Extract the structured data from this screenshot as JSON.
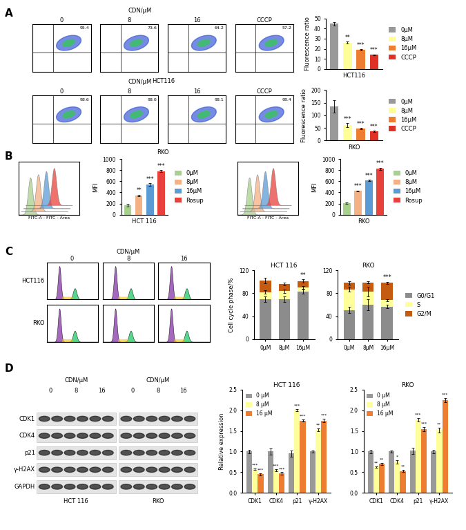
{
  "panel_labels": [
    "A",
    "B",
    "C",
    "D"
  ],
  "flow_cytometry": {
    "header": "CDN/μM",
    "conditions": [
      "0",
      "8",
      "16",
      "CCCP"
    ],
    "rows": [
      {
        "cell_line": "HCT116",
        "q2": [
          "95.4",
          "73.6",
          "64.2",
          "57.2"
        ]
      },
      {
        "cell_line": "RKO",
        "q2": [
          "98.6",
          "98.0",
          "98.1",
          "98.4"
        ]
      }
    ]
  },
  "ros_histograms": {
    "xlabel": "FITC-A - FITC - Area"
  },
  "cell_cycle_histograms": {
    "header": "CDN/μM",
    "conditions": [
      "0",
      "8",
      "16"
    ],
    "rows": [
      "HCT116",
      "RKO"
    ]
  },
  "western_blot": {
    "header": "CDN/μM",
    "doses": [
      "0",
      "8",
      "16"
    ],
    "cell_lines": [
      "HCT 116",
      "RKO"
    ],
    "rows": [
      "CDK1",
      "CDK4",
      "p21",
      "γ-H2AX",
      "GAPDH"
    ]
  },
  "chart_data": [
    {
      "type": "bar",
      "ylabel": "Fluorescence ratio",
      "xlabel": "HCT116",
      "categories": [
        "0μM",
        "8μM",
        "16μM",
        "CCCP"
      ],
      "values": [
        45,
        26,
        19,
        14
      ],
      "errors": [
        1.8,
        1.0,
        0.6,
        0.5
      ],
      "significance": [
        null,
        "**",
        "***",
        "***"
      ],
      "colors": [
        "#999999",
        "#ffff99",
        "#ed7d31",
        "#e03127"
      ],
      "ylim": [
        0,
        50
      ],
      "yticks": [
        0,
        10,
        20,
        30,
        40,
        50
      ],
      "legend": "right",
      "tick_labels": "y"
    },
    {
      "type": "bar",
      "ylabel": "Fluorescence ratio",
      "xlabel": "RKO",
      "categories": [
        "0μM",
        "8μM",
        "16μM",
        "CCCP"
      ],
      "values": [
        135,
        62,
        48,
        36
      ],
      "errors": [
        25,
        8,
        3,
        3
      ],
      "significance": [
        null,
        "***",
        "***",
        "***"
      ],
      "colors": [
        "#999999",
        "#ffff99",
        "#ed7d31",
        "#e03127"
      ],
      "ylim": [
        0,
        200
      ],
      "yticks": [
        0,
        50,
        100,
        150,
        200
      ],
      "legend": "right",
      "tick_labels": "y"
    },
    {
      "type": "bar",
      "ylabel": "MFI",
      "xlabel": "HCT 116",
      "categories": [
        "0μM",
        "8μM",
        "16μM",
        "Rosup"
      ],
      "values": [
        170,
        345,
        545,
        780
      ],
      "errors": [
        25,
        15,
        25,
        20
      ],
      "significance": [
        null,
        "**",
        "***",
        "***"
      ],
      "colors": [
        "#a9d18e",
        "#f4b183",
        "#5b9bd5",
        "#e8413c"
      ],
      "ylim": [
        0,
        1000
      ],
      "yticks": [
        0,
        200,
        400,
        600,
        800,
        1000
      ],
      "legend": "right",
      "tick_labels": "y"
    },
    {
      "type": "bar",
      "ylabel": "MFI",
      "xlabel": "RKO",
      "categories": [
        "0μM",
        "8μM",
        "16μM",
        "Rosup"
      ],
      "values": [
        210,
        425,
        620,
        825
      ],
      "errors": [
        15,
        10,
        12,
        20
      ],
      "significance": [
        null,
        "***",
        "***",
        "***"
      ],
      "colors": [
        "#a9d18e",
        "#f4b183",
        "#5b9bd5",
        "#e8413c"
      ],
      "ylim": [
        0,
        1000
      ],
      "yticks": [
        0,
        200,
        400,
        600,
        800,
        1000
      ],
      "legend": "right",
      "tick_labels": "y"
    },
    {
      "type": "bar",
      "stacked": true,
      "title": "HCT 116",
      "ylabel": "Cell cycle phase/%",
      "categories": [
        "0μM",
        "8μM",
        "16μM"
      ],
      "series": [
        {
          "name": "G0/G1",
          "color": "#8c8c8c",
          "values": [
            70,
            70,
            83
          ],
          "errors": [
            5,
            5,
            4
          ]
        },
        {
          "name": "S",
          "color": "#ffff99",
          "values": [
            12,
            14,
            7
          ],
          "errors": [
            3,
            3,
            2
          ]
        },
        {
          "name": "G2/M",
          "color": "#c55a11",
          "values": [
            20,
            12,
            11
          ],
          "errors": [
            5,
            2,
            3
          ]
        }
      ],
      "significance": [
        null,
        null,
        "**"
      ],
      "ylim": [
        0,
        120
      ],
      "yticks": [
        0,
        40,
        80,
        120
      ]
    },
    {
      "type": "bar",
      "stacked": true,
      "title": "RKO",
      "categories": [
        "0μM",
        "8μM",
        "16μM"
      ],
      "series": [
        {
          "name": "G0/G1",
          "color": "#8c8c8c",
          "values": [
            51,
            60,
            57
          ],
          "errors": [
            6,
            10,
            3
          ]
        },
        {
          "name": "S",
          "color": "#ffff99",
          "values": [
            36,
            23,
            11
          ],
          "errors": [
            4,
            8,
            2
          ]
        },
        {
          "name": "G2/M",
          "color": "#c55a11",
          "values": [
            11,
            16,
            30
          ],
          "errors": [
            3,
            2,
            2
          ]
        }
      ],
      "significance": [
        null,
        null,
        "***"
      ],
      "ylim": [
        0,
        120
      ],
      "yticks": [
        0,
        40,
        80,
        120
      ],
      "legend": "right"
    },
    {
      "type": "bar",
      "title": "HCT 116",
      "ylabel": "Relative expression",
      "categories": [
        "CDK1",
        "CDK4",
        "p21",
        "γ-H2AX"
      ],
      "series": [
        {
          "name": "0 μM",
          "color": "#999999",
          "values": [
            1.0,
            1.0,
            0.95,
            1.0
          ],
          "errors": [
            0.04,
            0.08,
            0.07,
            0.02
          ],
          "significance": [
            null,
            null,
            null,
            null
          ]
        },
        {
          "name": "8 μM",
          "color": "#ffff99",
          "values": [
            0.57,
            0.55,
            2.0,
            1.53
          ],
          "errors": [
            0.02,
            0.03,
            0.03,
            0.03
          ],
          "significance": [
            "***",
            "***",
            "***",
            "**"
          ]
        },
        {
          "name": "16 μM",
          "color": "#ed7d31",
          "values": [
            0.45,
            0.47,
            1.75,
            1.75
          ],
          "errors": [
            0.02,
            0.03,
            0.03,
            0.04
          ],
          "significance": [
            "***",
            "***",
            "***",
            "***"
          ]
        }
      ],
      "ylim": [
        0,
        2.5
      ],
      "yticks": [
        {
          "value": 0,
          "label": "0.0"
        },
        {
          "value": 0.5,
          "label": "0.5"
        },
        {
          "value": 1.0,
          "label": "1.0"
        },
        {
          "value": 1.5,
          "label": "1.5"
        },
        {
          "value": 2.0,
          "label": "2.0"
        },
        {
          "value": 2.5,
          "label": "2.5"
        }
      ],
      "legend": "upper left"
    },
    {
      "type": "bar",
      "title": "RKO",
      "categories": [
        "CDK1",
        "CDK4",
        "p21",
        "γ-H2AX"
      ],
      "series": [
        {
          "name": "0 μM",
          "color": "#999999",
          "values": [
            1.0,
            1.0,
            1.02,
            1.0
          ],
          "errors": [
            0.04,
            0.03,
            0.08,
            0.04
          ],
          "significance": [
            null,
            null,
            null,
            null
          ]
        },
        {
          "name": "8 μM",
          "color": "#ffff99",
          "values": [
            0.62,
            0.75,
            1.77,
            1.52
          ],
          "errors": [
            0.02,
            0.04,
            0.04,
            0.06
          ],
          "significance": [
            "**",
            "*",
            "***",
            "**"
          ]
        },
        {
          "name": "16 μM",
          "color": "#ed7d31",
          "values": [
            0.7,
            0.53,
            1.55,
            2.25
          ],
          "errors": [
            0.03,
            0.03,
            0.05,
            0.05
          ],
          "significance": [
            "**",
            "**",
            "***",
            "***"
          ]
        }
      ],
      "ylim": [
        0,
        2.5
      ],
      "yticks": [
        {
          "value": 0,
          "label": "0.0"
        },
        {
          "value": 0.5,
          "label": "0.5"
        },
        {
          "value": 1.0,
          "label": "1.0"
        },
        {
          "value": 1.5,
          "label": "1.5"
        },
        {
          "value": 2.0,
          "label": "2.0"
        },
        {
          "value": 2.5,
          "label": "2.5"
        }
      ],
      "legend": "upper left"
    }
  ]
}
